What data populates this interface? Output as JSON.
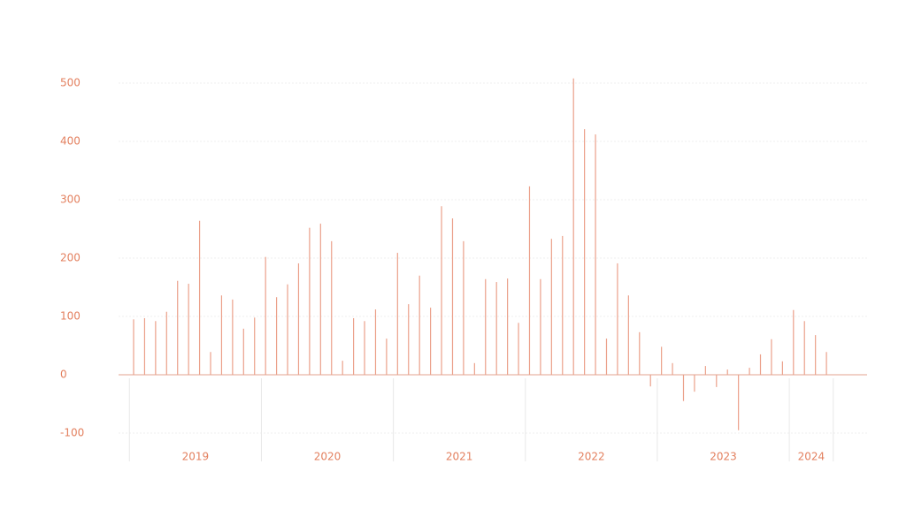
{
  "chart_data": {
    "type": "bar",
    "color": "#eba08a",
    "groups": [
      "2019",
      "2020",
      "2021",
      "2022",
      "2023",
      "2024"
    ],
    "categories": [
      null,
      null,
      null,
      null,
      null,
      null,
      null,
      null,
      null,
      null,
      null,
      null,
      null,
      null,
      null,
      null,
      null,
      null,
      null,
      null,
      null,
      null,
      null,
      null,
      null,
      null,
      null,
      null,
      null,
      null,
      null,
      null,
      null,
      null,
      null,
      null,
      null,
      null,
      null,
      null,
      null,
      null,
      null,
      null,
      null,
      null,
      null,
      null,
      null,
      null,
      null,
      null,
      null,
      null,
      null,
      null,
      null,
      null,
      null,
      null,
      null,
      null,
      null,
      null
    ],
    "values": [
      95,
      97,
      92,
      108,
      161,
      156,
      264,
      39,
      136,
      129,
      79,
      98,
      202,
      133,
      155,
      191,
      252,
      259,
      229,
      24,
      97,
      92,
      112,
      62,
      209,
      121,
      170,
      115,
      289,
      268,
      229,
      20,
      164,
      159,
      165,
      89,
      323,
      164,
      233,
      238,
      508,
      421,
      412,
      62,
      191,
      136,
      73,
      -20,
      48,
      20,
      -45,
      -29,
      15,
      -21,
      9,
      -95,
      12,
      35,
      61,
      23,
      111,
      92,
      68,
      39
    ],
    "ylim": [
      -100,
      500
    ],
    "yticks": [
      -100,
      0,
      100,
      200,
      300,
      400,
      500
    ],
    "grid": true
  }
}
